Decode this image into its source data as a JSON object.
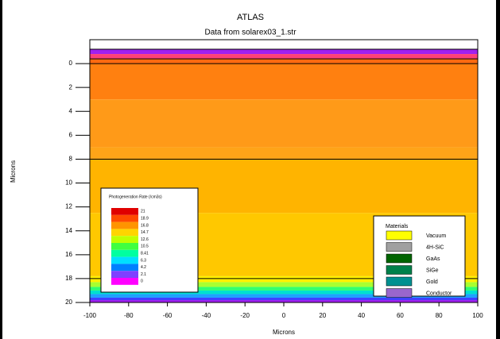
{
  "chart_data": {
    "type": "structure",
    "title": "ATLAS",
    "subtitle": "Data from solarex03_1.str",
    "x_label": "Microns",
    "y_label": "Microns",
    "xlim": [
      -100,
      100
    ],
    "ylim": [
      -2,
      20
    ],
    "y_inverted": true,
    "xticks": [
      -100,
      -80,
      -60,
      -40,
      -20,
      0,
      20,
      40,
      60,
      80,
      100
    ],
    "yticks": [
      0,
      2,
      4,
      6,
      8,
      10,
      12,
      14,
      16,
      18,
      20
    ],
    "bands": [
      {
        "y0": -2,
        "y1": -1.2,
        "color": "#ffffff"
      },
      {
        "y0": -1.2,
        "y1": -0.8,
        "color": "#a020f0"
      },
      {
        "y0": -0.8,
        "y1": -0.4,
        "color": "#ff4078"
      },
      {
        "y0": -0.4,
        "y1": 0,
        "color": "#ff6a10"
      },
      {
        "y0": 0,
        "y1": 3,
        "color": "#ff8010"
      },
      {
        "y0": 3,
        "y1": 7,
        "color": "#ff9a18"
      },
      {
        "y0": 7,
        "y1": 8,
        "color": "#ffa418"
      },
      {
        "y0": 8,
        "y1": 12.5,
        "color": "#ffb400"
      },
      {
        "y0": 12.5,
        "y1": 17.8,
        "color": "#ffc800"
      },
      {
        "y0": 17.8,
        "y1": 18.3,
        "color": "#fff000"
      },
      {
        "y0": 18.3,
        "y1": 18.7,
        "color": "#a8ff30"
      },
      {
        "y0": 18.7,
        "y1": 19,
        "color": "#30ff70"
      },
      {
        "y0": 19,
        "y1": 19.3,
        "color": "#00e0d0"
      },
      {
        "y0": 19.3,
        "y1": 19.6,
        "color": "#20a0ff"
      },
      {
        "y0": 19.6,
        "y1": 19.8,
        "color": "#4040ff"
      },
      {
        "y0": 19.8,
        "y1": 20,
        "color": "#a020f0"
      }
    ],
    "boundaries": [
      -1.2,
      -0.4,
      0,
      8,
      18
    ],
    "colorbar": {
      "title": "Photogeneration Rate (/cm3s)",
      "levels": [
        21,
        18.9,
        16.8,
        14.7,
        12.6,
        10.5,
        8.41,
        6.3,
        4.2,
        2.1,
        0
      ],
      "colors": [
        "#e00000",
        "#ff4a00",
        "#ff9400",
        "#ffd400",
        "#c0ff00",
        "#40ff40",
        "#00ffa0",
        "#00e0ff",
        "#0080ff",
        "#8040ff",
        "#ff00ff"
      ]
    },
    "materials": {
      "title": "Materials",
      "items": [
        {
          "name": "Vacuum",
          "color": "#ffff00"
        },
        {
          "name": "4H-SiC",
          "color": "#a0a0a0"
        },
        {
          "name": "GaAs",
          "color": "#006400"
        },
        {
          "name": "SiGe",
          "color": "#00804a"
        },
        {
          "name": "Gold",
          "color": "#009090"
        },
        {
          "name": "Conductor",
          "color": "#9966cc"
        }
      ]
    }
  }
}
